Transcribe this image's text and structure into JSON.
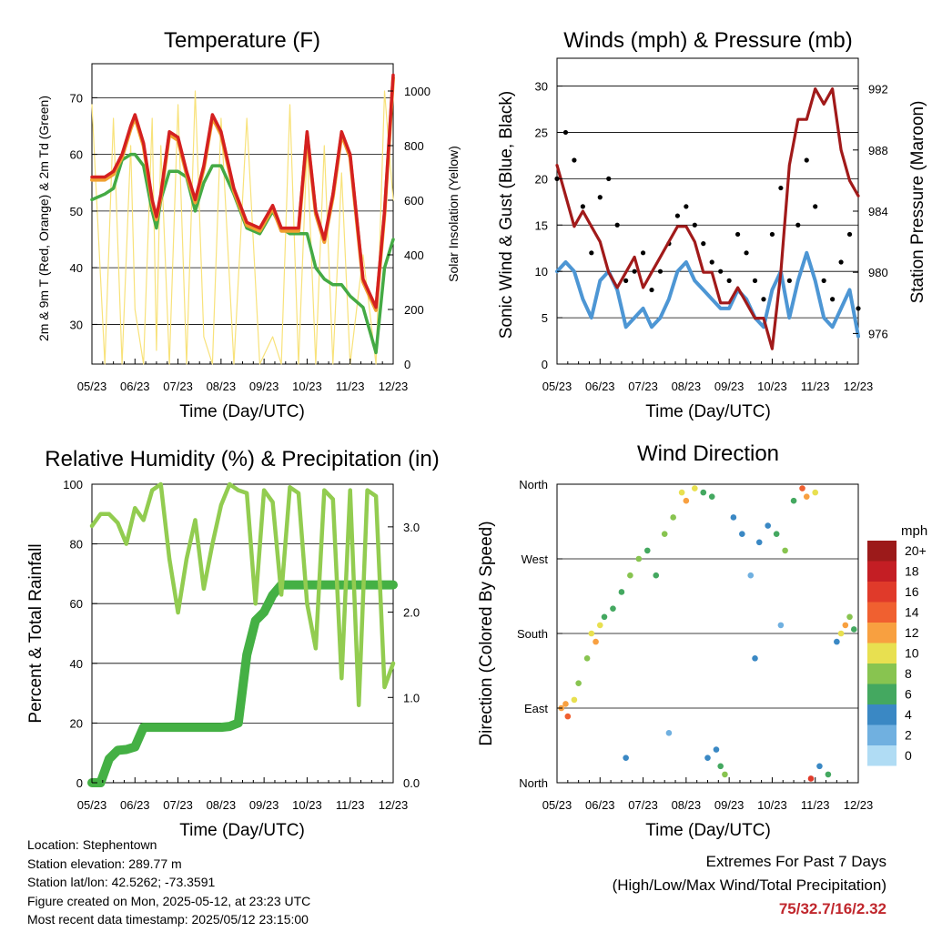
{
  "ticks_x": [
    "05/23",
    "06/23",
    "07/23",
    "08/23",
    "09/23",
    "10/23",
    "11/23",
    "12/23"
  ],
  "temperature": {
    "title": "Temperature (F)",
    "ylabel": "2m & 9m T (Red, Orange) & 2m Td (Green)",
    "y2label": "Solar Insolation (Yellow)",
    "xlabel": "Time (Day/UTC)",
    "y_ticks": [
      "30",
      "40",
      "50",
      "60",
      "70"
    ],
    "y2_ticks": [
      "0",
      "200",
      "400",
      "600",
      "800",
      "1000"
    ]
  },
  "winds": {
    "title": "Winds (mph) & Pressure (mb)",
    "ylabel": "Sonic Wind & Gust (Blue, Black)",
    "y2label": "Station Pressure (Maroon)",
    "xlabel": "Time (Day/UTC)",
    "y_ticks": [
      "0",
      "5",
      "10",
      "15",
      "20",
      "25",
      "30"
    ],
    "y2_ticks": [
      "976",
      "980",
      "984",
      "988",
      "992"
    ]
  },
  "humidity": {
    "title": "Relative Humidity (%) & Precipitation (in)",
    "ylabel": "Percent & Total Rainfall",
    "xlabel": "Time (Day/UTC)",
    "y_ticks": [
      "0",
      "20",
      "40",
      "60",
      "80",
      "100"
    ],
    "y2_ticks": [
      "0.0",
      "1.0",
      "2.0",
      "3.0"
    ]
  },
  "direction": {
    "title": "Wind Direction",
    "ylabel": "Direction (Colored By Speed)",
    "xlabel": "Time (Day/UTC)",
    "y_ticks": [
      "North",
      "East",
      "South",
      "West",
      "North"
    ],
    "legend_title": "mph",
    "legend_labels": [
      "20+",
      "18",
      "16",
      "14",
      "12",
      "10",
      "8",
      "6",
      "4",
      "2",
      "0"
    ]
  },
  "info": {
    "location": "Location: Stephentown",
    "elevation": "Station elevation: 289.77 m",
    "latlon": "Station lat/lon: 42.5262; -73.3591",
    "created": "Figure created on Mon, 2025-05-12, at 23:23 UTC",
    "recent": "Most recent data timestamp: 2025/05/12 23:15:00"
  },
  "extremes": {
    "line1": "Extremes For Past 7 Days",
    "line2": "(High/Low/Max Wind/Total Precipitation)",
    "values": "75/32.7/16/2.32"
  },
  "colors": {
    "temp2m": "#d42020",
    "temp9m": "#f0a030",
    "dewpoint": "#44aa44",
    "solar": "#f8e27a",
    "wind": "#4d96d4",
    "gust": "#000000",
    "pressure": "#a11a1a",
    "rh": "#92cc50",
    "precip": "#44b044",
    "legend": [
      "#9c1a1a",
      "#c41e24",
      "#e03a2a",
      "#f06030",
      "#f8a040",
      "#e8e050",
      "#88c450",
      "#44a860",
      "#3a88c4",
      "#70b0e0",
      "#b0dcf4"
    ]
  },
  "chart_data": [
    {
      "type": "line",
      "title": "Temperature (F)",
      "xlabel": "Time (Day/UTC)",
      "ylabel": "2m & 9m T (Red, Orange) & 2m Td (Green)",
      "y2label": "Solar Insolation (Yellow)",
      "x_ticks": [
        "05/23",
        "06/23",
        "07/23",
        "08/23",
        "09/23",
        "10/23",
        "11/23",
        "12/23"
      ],
      "xlim": [
        0,
        7
      ],
      "ylim": [
        23,
        76
      ],
      "y2lim": [
        0,
        1100
      ],
      "x": [
        0,
        0.3,
        0.5,
        0.7,
        0.9,
        1.0,
        1.2,
        1.4,
        1.5,
        1.6,
        1.8,
        2.0,
        2.2,
        2.4,
        2.6,
        2.8,
        3.0,
        3.3,
        3.6,
        3.9,
        4.2,
        4.4,
        4.6,
        4.8,
        5.0,
        5.2,
        5.4,
        5.6,
        5.8,
        6.0,
        6.3,
        6.6,
        6.8,
        7.0
      ],
      "series": [
        {
          "name": "2m T",
          "values": [
            56,
            56,
            57,
            60,
            65,
            67,
            62,
            52,
            49,
            53,
            64,
            63,
            57,
            52,
            58,
            67,
            64,
            54,
            48,
            47,
            51,
            47,
            47,
            47,
            64,
            50,
            45,
            53,
            64,
            60,
            38,
            33,
            50,
            74
          ]
        },
        {
          "name": "9m T",
          "values": [
            55.5,
            55.5,
            56.5,
            59.5,
            64.5,
            66.5,
            61.5,
            51.5,
            48.5,
            52.5,
            63.5,
            62.5,
            56.5,
            51.5,
            57.5,
            66.5,
            63.5,
            53.5,
            47.5,
            46.5,
            50.5,
            46.5,
            46.5,
            46.5,
            63.5,
            49.5,
            44.5,
            52.5,
            63.5,
            59.5,
            37.5,
            32.5,
            49.5,
            73.5
          ]
        },
        {
          "name": "2m Td",
          "values": [
            52,
            53,
            54,
            59,
            60,
            60,
            58,
            50,
            47,
            52,
            57,
            57,
            56,
            50,
            55,
            58,
            58,
            53,
            47,
            46,
            50,
            47,
            46,
            46,
            46,
            40,
            38,
            37,
            37,
            35,
            33,
            25,
            40,
            45
          ]
        },
        {
          "name": "Solar",
          "axis": "y2",
          "values": [
            950,
            0,
            900,
            0,
            800,
            200,
            0,
            900,
            50,
            800,
            0,
            950,
            0,
            1000,
            100,
            0,
            900,
            0,
            900,
            0,
            100,
            0,
            950,
            0,
            800,
            0,
            800,
            0,
            700,
            0,
            400,
            0,
            1000,
            600
          ]
        }
      ]
    },
    {
      "type": "line",
      "title": "Winds (mph) & Pressure (mb)",
      "xlabel": "Time (Day/UTC)",
      "ylabel": "Sonic Wind & Gust (Blue, Black)",
      "y2label": "Station Pressure (Maroon)",
      "x_ticks": [
        "05/23",
        "06/23",
        "07/23",
        "08/23",
        "09/23",
        "10/23",
        "11/23",
        "12/23"
      ],
      "xlim": [
        0,
        7
      ],
      "ylim": [
        0,
        33
      ],
      "y2lim": [
        974,
        994
      ],
      "x": [
        0,
        0.2,
        0.4,
        0.6,
        0.8,
        1.0,
        1.2,
        1.4,
        1.6,
        1.8,
        2.0,
        2.2,
        2.4,
        2.6,
        2.8,
        3.0,
        3.2,
        3.4,
        3.6,
        3.8,
        4.0,
        4.2,
        4.4,
        4.6,
        4.8,
        5.0,
        5.2,
        5.4,
        5.6,
        5.8,
        6.0,
        6.2,
        6.4,
        6.6,
        6.8,
        7.0
      ],
      "series": [
        {
          "name": "Sonic Wind",
          "values": [
            10,
            11,
            10,
            7,
            5,
            9,
            10,
            8,
            4,
            5,
            6,
            4,
            5,
            7,
            10,
            11,
            9,
            8,
            7,
            6,
            6,
            8,
            7,
            5,
            4,
            8,
            10,
            5,
            9,
            12,
            9,
            5,
            4,
            6,
            8,
            3
          ]
        },
        {
          "name": "Gust",
          "values": [
            20,
            25,
            22,
            17,
            12,
            18,
            20,
            15,
            9,
            10,
            12,
            8,
            10,
            13,
            16,
            17,
            15,
            13,
            11,
            10,
            9,
            14,
            12,
            9,
            7,
            14,
            19,
            9,
            15,
            22,
            17,
            9,
            7,
            11,
            14,
            6
          ]
        },
        {
          "name": "Station Pressure",
          "axis": "y2",
          "values": [
            987,
            985,
            983,
            984,
            983,
            982,
            980,
            979,
            980,
            981,
            979,
            980,
            981,
            982,
            983,
            983,
            982,
            980,
            980,
            978,
            978,
            979,
            978,
            977,
            977,
            975,
            980,
            987,
            990,
            990,
            992,
            991,
            992,
            988,
            986,
            985
          ]
        }
      ]
    },
    {
      "type": "line",
      "title": "Relative Humidity (%) & Precipitation (in)",
      "xlabel": "Time (Day/UTC)",
      "ylabel": "Percent & Total Rainfall",
      "x_ticks": [
        "05/23",
        "06/23",
        "07/23",
        "08/23",
        "09/23",
        "10/23",
        "11/23",
        "12/23"
      ],
      "xlim": [
        0,
        7
      ],
      "ylim": [
        0,
        100
      ],
      "y2lim": [
        0.0,
        3.5
      ],
      "x": [
        0,
        0.2,
        0.4,
        0.6,
        0.8,
        1.0,
        1.2,
        1.4,
        1.6,
        1.8,
        2.0,
        2.2,
        2.4,
        2.6,
        2.8,
        3.0,
        3.2,
        3.4,
        3.6,
        3.8,
        4.0,
        4.2,
        4.4,
        4.6,
        4.8,
        5.0,
        5.2,
        5.4,
        5.6,
        5.8,
        6.0,
        6.2,
        6.4,
        6.6,
        6.8,
        7.0
      ],
      "series": [
        {
          "name": "Relative Humidity",
          "values": [
            86,
            90,
            90,
            87,
            80,
            92,
            88,
            98,
            100,
            75,
            57,
            75,
            88,
            65,
            80,
            93,
            100,
            98,
            97,
            60,
            98,
            94,
            63,
            99,
            97,
            60,
            45,
            98,
            95,
            35,
            98,
            26,
            98,
            96,
            32,
            40
          ]
        },
        {
          "name": "Total Rainfall",
          "axis": "y2",
          "values": [
            0.0,
            0.0,
            0.28,
            0.38,
            0.39,
            0.42,
            0.65,
            0.65,
            0.65,
            0.65,
            0.65,
            0.65,
            0.65,
            0.65,
            0.65,
            0.65,
            0.66,
            0.7,
            1.5,
            1.9,
            2.0,
            2.2,
            2.32,
            2.32,
            2.32,
            2.32,
            2.32,
            2.32,
            2.32,
            2.32,
            2.32,
            2.32,
            2.32,
            2.32,
            2.32,
            2.32
          ]
        }
      ]
    },
    {
      "type": "scatter",
      "title": "Wind Direction",
      "xlabel": "Time (Day/UTC)",
      "ylabel": "Direction (Colored By Speed)",
      "x_ticks": [
        "05/23",
        "06/23",
        "07/23",
        "08/23",
        "09/23",
        "10/23",
        "11/23",
        "12/23"
      ],
      "y_ticks": [
        "North",
        "East",
        "South",
        "West",
        "North"
      ],
      "xlim": [
        0,
        7
      ],
      "ylim": [
        0,
        360
      ],
      "legend_title": "mph",
      "points": [
        [
          0.1,
          90,
          12
        ],
        [
          0.2,
          95,
          11
        ],
        [
          0.25,
          80,
          13
        ],
        [
          0.4,
          100,
          10
        ],
        [
          0.5,
          120,
          8
        ],
        [
          0.7,
          150,
          7
        ],
        [
          0.8,
          180,
          9
        ],
        [
          0.9,
          170,
          12
        ],
        [
          1.0,
          190,
          10
        ],
        [
          1.1,
          200,
          6
        ],
        [
          1.3,
          210,
          5
        ],
        [
          1.5,
          230,
          6
        ],
        [
          1.7,
          250,
          7
        ],
        [
          1.9,
          270,
          8
        ],
        [
          2.1,
          280,
          6
        ],
        [
          2.3,
          250,
          5
        ],
        [
          2.5,
          300,
          7
        ],
        [
          2.7,
          320,
          8
        ],
        [
          2.9,
          350,
          10
        ],
        [
          3.0,
          340,
          12
        ],
        [
          3.2,
          355,
          9
        ],
        [
          3.4,
          350,
          6
        ],
        [
          3.6,
          345,
          5
        ],
        [
          3.8,
          20,
          6
        ],
        [
          3.9,
          10,
          8
        ],
        [
          4.1,
          320,
          4
        ],
        [
          4.3,
          300,
          3
        ],
        [
          4.5,
          250,
          2
        ],
        [
          4.7,
          290,
          3
        ],
        [
          4.9,
          310,
          4
        ],
        [
          5.1,
          300,
          6
        ],
        [
          5.3,
          280,
          7
        ],
        [
          5.5,
          340,
          6
        ],
        [
          5.7,
          355,
          14
        ],
        [
          5.8,
          345,
          12
        ],
        [
          5.9,
          5,
          15
        ],
        [
          6.0,
          350,
          9
        ],
        [
          6.1,
          20,
          4
        ],
        [
          6.3,
          10,
          5
        ],
        [
          6.5,
          170,
          4
        ],
        [
          6.6,
          180,
          10
        ],
        [
          6.7,
          190,
          11
        ],
        [
          6.8,
          200,
          8
        ],
        [
          6.9,
          185,
          6
        ],
        [
          3.5,
          30,
          4
        ],
        [
          3.7,
          40,
          3
        ],
        [
          2.6,
          60,
          2
        ],
        [
          4.6,
          150,
          3
        ],
        [
          5.2,
          190,
          2
        ],
        [
          1.6,
          30,
          3
        ]
      ]
    }
  ]
}
